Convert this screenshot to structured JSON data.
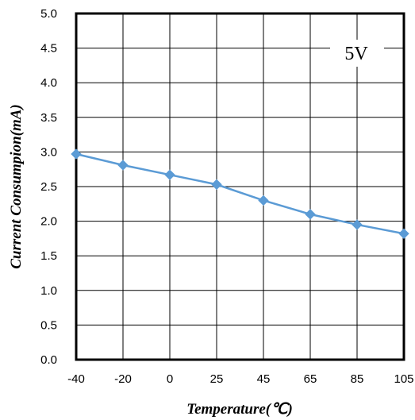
{
  "chart_data": {
    "type": "line",
    "title": "",
    "xlabel": "Temperature(℃)",
    "ylabel": "Current  Consumpion(mA)",
    "annotation": "5V",
    "x": [
      "-40",
      "-20",
      "0",
      "25",
      "45",
      "65",
      "85",
      "105"
    ],
    "series": [
      {
        "values": [
          2.97,
          2.81,
          2.67,
          2.53,
          2.3,
          2.1,
          1.95,
          1.82
        ],
        "color": "#5B9BD5",
        "marker": "diamond"
      }
    ],
    "ylim": [
      0,
      5
    ],
    "yticks": [
      "0.0",
      "0.5",
      "1.0",
      "1.5",
      "2.0",
      "2.5",
      "3.0",
      "3.5",
      "4.0",
      "4.5",
      "5.0"
    ],
    "grid": true,
    "legend": "none"
  }
}
